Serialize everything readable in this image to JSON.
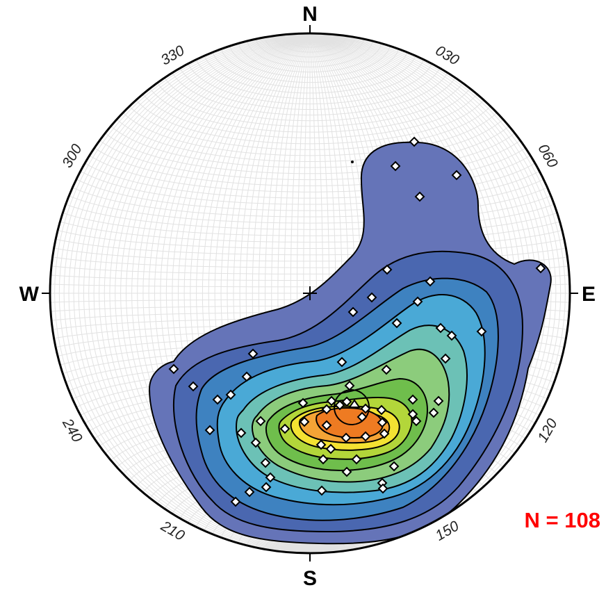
{
  "stereonet": {
    "cardinals": {
      "north": "N",
      "south": "S",
      "east": "E",
      "west": "W"
    },
    "azimuth_labels": [
      {
        "text": "030",
        "bearing": 30
      },
      {
        "text": "060",
        "bearing": 60
      },
      {
        "text": "120",
        "bearing": 120
      },
      {
        "text": "150",
        "bearing": 150
      },
      {
        "text": "210",
        "bearing": 210
      },
      {
        "text": "240",
        "bearing": 240
      },
      {
        "text": "300",
        "bearing": 300
      },
      {
        "text": "330",
        "bearing": 330
      }
    ],
    "count_label": "N = 108",
    "colors": {
      "grid": "#e2e2e2",
      "contour_levels": [
        "#6574b8",
        "#4a67b0",
        "#3e82c0",
        "#4aa9d6",
        "#6cc1b6",
        "#8ccc7c",
        "#6fbe4c",
        "#b3d63a",
        "#f3e232",
        "#f4a436",
        "#ee7b22"
      ],
      "contour_line": "#000000",
      "pole_marker_fill": "#ffffff",
      "pole_marker_stroke": "#000000",
      "count_text": "#ff0000"
    },
    "mean_vector": {
      "symbol": "triangle"
    }
  }
}
